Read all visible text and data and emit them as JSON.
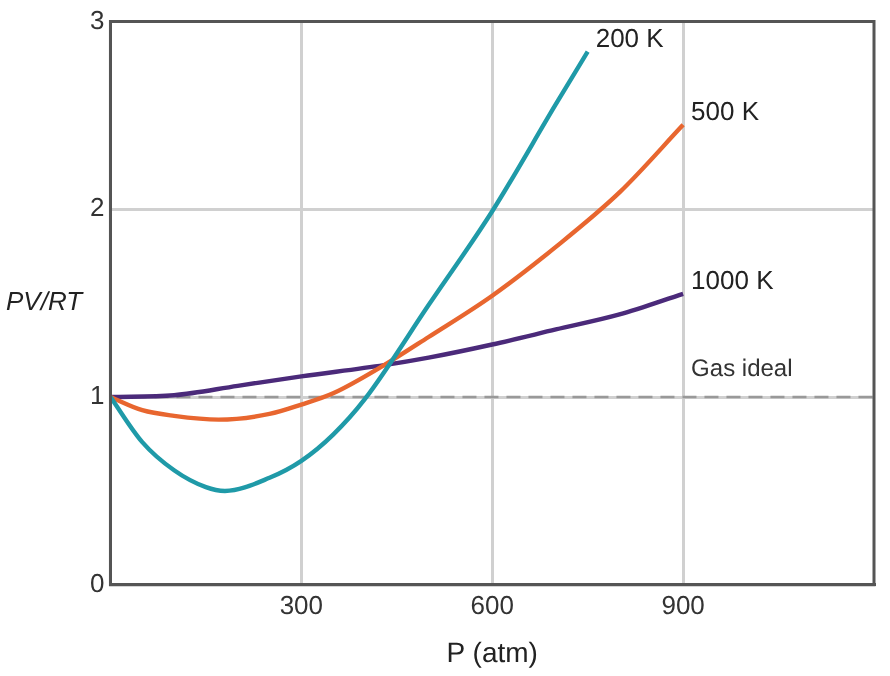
{
  "chart_data": {
    "type": "line",
    "xlabel": "P (atm)",
    "ylabel": "PV/RT",
    "xlim": [
      0,
      1200
    ],
    "xticks": [
      300,
      600,
      900
    ],
    "ylim": [
      0,
      3
    ],
    "yticks": [
      0,
      1,
      2,
      3
    ],
    "grid": true,
    "legend": false,
    "marker": "none",
    "line_style": "solid",
    "series": [
      {
        "name": "200 K",
        "color": "#1f9aa8",
        "x": [
          0,
          50,
          100,
          150,
          180,
          250,
          300,
          350,
          400,
          500,
          600,
          700,
          750
        ],
        "values": [
          1,
          0.76,
          0.61,
          0.52,
          0.5,
          0.57,
          0.66,
          0.8,
          0.99,
          1.49,
          1.99,
          2.56,
          2.84
        ]
      },
      {
        "name": "500 K",
        "color": "#e8662f",
        "x": [
          0,
          50,
          100,
          170,
          250,
          300,
          350,
          430,
          500,
          600,
          700,
          800,
          900
        ],
        "values": [
          1,
          0.93,
          0.9,
          0.88,
          0.91,
          0.96,
          1.02,
          1.17,
          1.32,
          1.54,
          1.8,
          2.09,
          2.45
        ]
      },
      {
        "name": "1000 K",
        "color": "#4b2a7a",
        "x": [
          0,
          100,
          200,
          300,
          430,
          500,
          600,
          700,
          800,
          900
        ],
        "values": [
          1,
          1.01,
          1.06,
          1.11,
          1.17,
          1.21,
          1.28,
          1.36,
          1.44,
          1.55
        ]
      }
    ],
    "ref_lines": [
      {
        "axis": "y",
        "value": 1,
        "label": "Gas ideal",
        "color": "#999999",
        "line_style": "dashed"
      }
    ]
  }
}
